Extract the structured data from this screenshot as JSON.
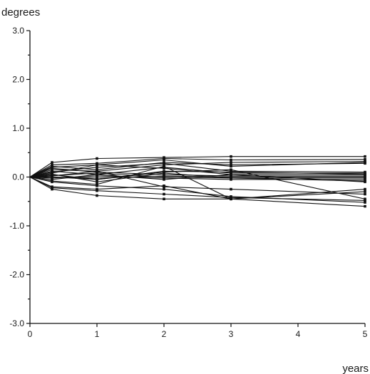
{
  "chart_data": {
    "type": "line",
    "title": "",
    "xlabel": "years",
    "ylabel": "degrees",
    "x": [
      0,
      0.33,
      1,
      2,
      3,
      5
    ],
    "xlim": [
      0,
      5
    ],
    "ylim": [
      -3.0,
      3.0
    ],
    "xticks": [
      0,
      1,
      2,
      3,
      4,
      5
    ],
    "xtick_labels": [
      "0",
      "1",
      "2",
      "3",
      "4",
      "5"
    ],
    "yticks": [
      -3.0,
      -2.0,
      -1.0,
      0.0,
      1.0,
      2.0,
      3.0
    ],
    "ytick_labels": [
      "-3.0",
      "-2.0",
      "-1.0",
      "0.0",
      "1.0",
      "2.0",
      "3.0"
    ],
    "grid": false,
    "legend": "none",
    "line_color": "#111111",
    "series": [
      {
        "values": [
          0,
          0.3,
          0.38,
          0.4,
          0.42,
          0.42
        ]
      },
      {
        "values": [
          0,
          0.25,
          0.28,
          0.38,
          0.35,
          0.36
        ]
      },
      {
        "values": [
          0,
          0.2,
          0.25,
          0.35,
          0.22,
          0.3
        ]
      },
      {
        "values": [
          0,
          0.22,
          0.15,
          0.3,
          0.25,
          0.28
        ]
      },
      {
        "values": [
          0,
          0.15,
          0.12,
          0.25,
          0.3,
          0.32
        ]
      },
      {
        "values": [
          0,
          0.1,
          0.2,
          0.28,
          0.12,
          0.1
        ]
      },
      {
        "values": [
          0,
          0.12,
          0.05,
          0.2,
          0.08,
          0.08
        ]
      },
      {
        "values": [
          0,
          0.08,
          0.25,
          0.18,
          0.05,
          0.05
        ]
      },
      {
        "values": [
          0,
          0.05,
          -0.05,
          0.12,
          0.1,
          0.06
        ]
      },
      {
        "values": [
          0,
          0.18,
          0.1,
          0.05,
          0.02,
          0.02
        ]
      },
      {
        "values": [
          0,
          0.03,
          0.08,
          0.0,
          -0.02,
          -0.02
        ]
      },
      {
        "values": [
          0,
          0.0,
          -0.02,
          0.02,
          0.0,
          0.0
        ]
      },
      {
        "values": [
          0,
          -0.02,
          0.02,
          -0.02,
          -0.05,
          -0.05
        ]
      },
      {
        "values": [
          0,
          0.06,
          -0.1,
          0.08,
          -0.02,
          -0.08
        ]
      },
      {
        "values": [
          0,
          -0.05,
          0.05,
          -0.05,
          0.05,
          -0.1
        ]
      },
      {
        "values": [
          0,
          -0.08,
          -0.15,
          0.22,
          -0.45,
          -0.25
        ]
      },
      {
        "values": [
          0,
          0.02,
          0.12,
          -0.2,
          -0.25,
          -0.35
        ]
      },
      {
        "values": [
          0,
          -0.2,
          -0.25,
          -0.18,
          -0.45,
          -0.3
        ]
      },
      {
        "values": [
          0,
          -0.22,
          -0.28,
          -0.35,
          -0.42,
          -0.48
        ]
      },
      {
        "values": [
          0,
          -0.25,
          -0.38,
          -0.45,
          -0.45,
          -0.6
        ]
      },
      {
        "values": [
          0,
          -0.1,
          -0.18,
          -0.25,
          -0.4,
          -0.52
        ]
      },
      {
        "values": [
          0,
          0.0,
          -0.05,
          0.1,
          0.15,
          -0.45
        ]
      }
    ]
  }
}
